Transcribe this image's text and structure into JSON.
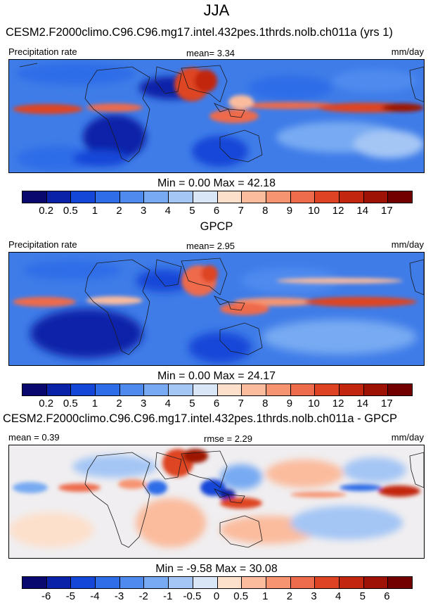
{
  "season": "JJA",
  "panels": [
    {
      "title": "CESM2.F2000climo.C96.C96.mg17.intel.432pes.1thrds.nolb.ch011a (yrs 1)",
      "left_label": "Precipitation rate",
      "mid_label": "mean=   3.34",
      "right_label": "mm/day",
      "minmax": "Min =    0.00 Max =  42.18",
      "colorbar": {
        "labels": [
          "0.2",
          "0.5",
          "1",
          "2",
          "3",
          "4",
          "5",
          "6",
          "7",
          "8",
          "9",
          "10",
          "12",
          "14",
          "17"
        ],
        "colors": [
          "#08086e",
          "#0a22a8",
          "#1446d8",
          "#2f6de8",
          "#4f8bef",
          "#77aaf2",
          "#a4c6f5",
          "#d8e6f8",
          "#fde0cc",
          "#fbbc9e",
          "#f69472",
          "#ee6b4b",
          "#de4424",
          "#c2260e",
          "#9e1206",
          "#730000"
        ]
      }
    },
    {
      "title": "GPCP",
      "left_label": "Precipitation rate",
      "mid_label": "mean=   2.95",
      "right_label": "mm/day",
      "minmax": "Min =    0.00 Max =  24.17",
      "colorbar": {
        "labels": [
          "0.2",
          "0.5",
          "1",
          "2",
          "3",
          "4",
          "5",
          "6",
          "7",
          "8",
          "9",
          "10",
          "12",
          "14",
          "17"
        ],
        "colors": [
          "#08086e",
          "#0a22a8",
          "#1446d8",
          "#2f6de8",
          "#4f8bef",
          "#77aaf2",
          "#a4c6f5",
          "#d8e6f8",
          "#fde0cc",
          "#fbbc9e",
          "#f69472",
          "#ee6b4b",
          "#de4424",
          "#c2260e",
          "#9e1206",
          "#730000"
        ]
      }
    },
    {
      "title": "CESM2.F2000climo.C96.C96.mg17.intel.432pes.1thrds.nolb.ch011a - GPCP",
      "left_label": "mean =   0.39",
      "mid_label": "rmse =   2.29",
      "right_label": "mm/day",
      "minmax": "Min =  -9.58 Max =  30.08",
      "colorbar": {
        "labels": [
          "-6",
          "-5",
          "-4",
          "-3",
          "-2",
          "-1",
          "-0.5",
          "0",
          "0.5",
          "1",
          "2",
          "3",
          "4",
          "5",
          "6"
        ],
        "colors": [
          "#08086e",
          "#0a22a8",
          "#1446d8",
          "#2f6de8",
          "#4f8bef",
          "#77aaf2",
          "#a4c6f5",
          "#d8e6f8",
          "#fde0cc",
          "#fbbc9e",
          "#f69472",
          "#ee6b4b",
          "#de4424",
          "#c2260e",
          "#9e1206",
          "#730000"
        ]
      }
    }
  ],
  "chart_data": [
    {
      "type": "heatmap",
      "title": "CESM2.F2000climo.C96.C96.mg17.intel.432pes.1thrds.nolb.ch011a (yrs 1)",
      "variable": "Precipitation rate",
      "units": "mm/day",
      "mean": 3.34,
      "min": 0.0,
      "max": 42.18,
      "contour_levels": [
        0.2,
        0.5,
        1,
        2,
        3,
        4,
        5,
        6,
        7,
        8,
        9,
        10,
        12,
        14,
        17
      ]
    },
    {
      "type": "heatmap",
      "title": "GPCP",
      "variable": "Precipitation rate",
      "units": "mm/day",
      "mean": 2.95,
      "min": 0.0,
      "max": 24.17,
      "contour_levels": [
        0.2,
        0.5,
        1,
        2,
        3,
        4,
        5,
        6,
        7,
        8,
        9,
        10,
        12,
        14,
        17
      ]
    },
    {
      "type": "heatmap",
      "title": "CESM2.F2000climo.C96.C96.mg17.intel.432pes.1thrds.nolb.ch011a - GPCP",
      "units": "mm/day",
      "mean": 0.39,
      "rmse": 2.29,
      "min": -9.58,
      "max": 30.08,
      "contour_levels": [
        -6,
        -5,
        -4,
        -3,
        -2,
        -1,
        -0.5,
        0,
        0.5,
        1,
        2,
        3,
        4,
        5,
        6
      ]
    }
  ]
}
